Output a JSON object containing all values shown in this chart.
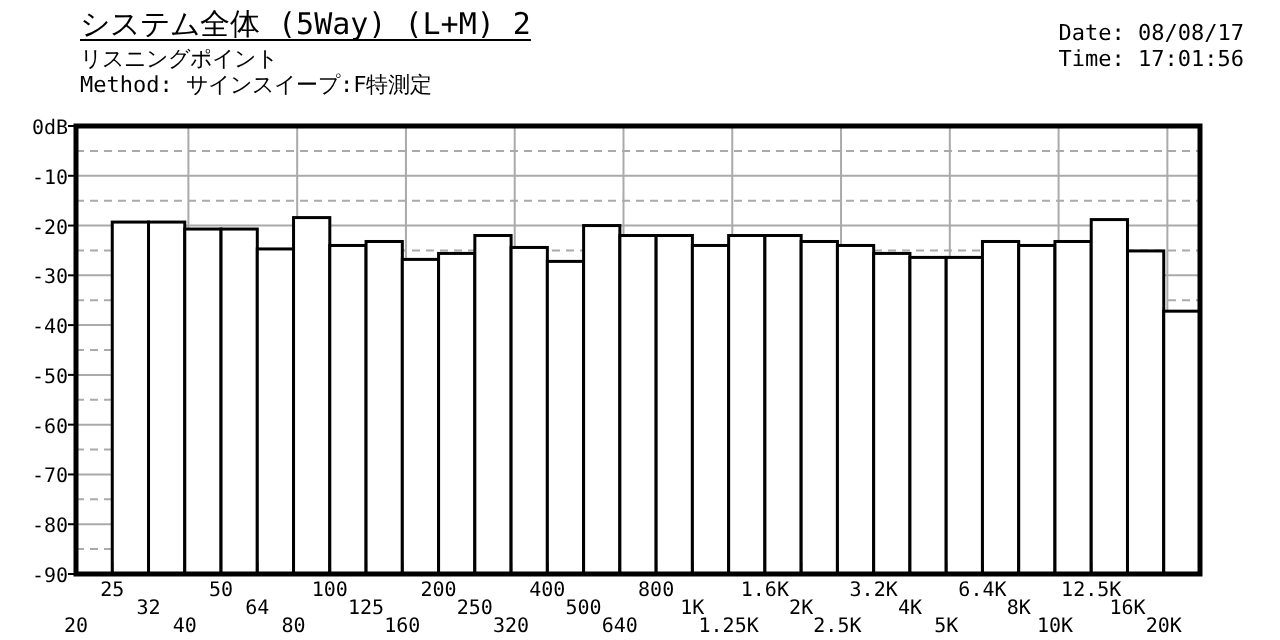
{
  "chart_data": {
    "type": "bar",
    "title": "システム全体 (5Way) (L+M)  2",
    "subtitle": "リスニングポイント",
    "annotations": [
      "Method: サインスイープ:F特測定",
      "Date: 08/08/17",
      "Time: 17:01:56"
    ],
    "categories": [
      "20",
      "25",
      "32",
      "40",
      "50",
      "64",
      "80",
      "100",
      "125",
      "160",
      "200",
      "250",
      "320",
      "400",
      "500",
      "640",
      "800",
      "1K",
      "1.25K",
      "1.6K",
      "2K",
      "2.5K",
      "3.2K",
      "4K",
      "5K",
      "6.4K",
      "8K",
      "10K",
      "12.5K",
      "16K",
      "20K"
    ],
    "base": [
      null,
      -90,
      -90,
      -90,
      -90,
      -90,
      -90,
      -90,
      -90,
      -90,
      -90,
      -90,
      -90,
      -90,
      -90,
      -90,
      -90,
      -90,
      -90,
      -90,
      -90,
      -90,
      -90,
      -90,
      -90,
      -90,
      -90,
      -90,
      -90,
      -90,
      -90
    ],
    "values": [
      null,
      70.7,
      70.7,
      69.3,
      69.3,
      65.3,
      71.6,
      66,
      66.8,
      63.2,
      64.4,
      68,
      65.6,
      62.8,
      70,
      68,
      68,
      66,
      68,
      68,
      66.8,
      66,
      64.4,
      63.6,
      63.6,
      66.8,
      66,
      66.8,
      71.2,
      64.9,
      52.8
    ],
    "color": "#ffffff",
    "ylim": [
      -90,
      0
    ],
    "yticks": [
      {
        "value": 0,
        "label": "0dB"
      },
      -10,
      -20,
      -30,
      -40,
      -50,
      -60,
      -70,
      -80,
      -90
    ],
    "grid": true
  }
}
